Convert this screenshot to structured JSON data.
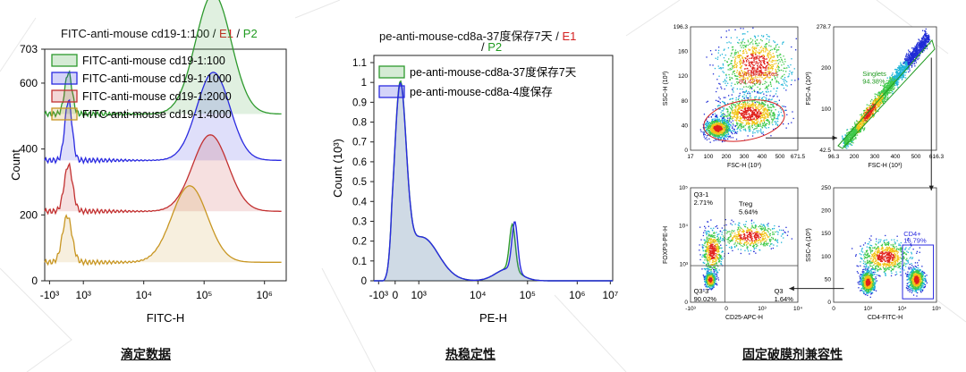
{
  "panels": [
    {
      "title_parts": [
        "FITC-anti-mouse cd19-1:100 / ",
        "E1",
        " / ",
        "P2"
      ],
      "caption": "滴定数据",
      "chart_data": {
        "type": "area",
        "ylabel": "Count",
        "xlabel": "FITC-H",
        "y_ticks": [
          "0",
          "200",
          "400",
          "600",
          "703"
        ],
        "x_ticks": [
          "-10³",
          "10³",
          "10⁴",
          "10⁵",
          "10⁶"
        ],
        "legend_position": "top-left",
        "series": [
          {
            "name": "FITC-anti-mouse cd19-1:100",
            "color": "#2e9a2e",
            "offset": 0.72,
            "peaks": [
              [
                0.4,
                0.18,
                0.06
              ],
              [
                2.85,
                0.52,
                0.3
              ]
            ]
          },
          {
            "name": "FITC-anti-mouse cd19-1:1000",
            "color": "#2a2ae0",
            "offset": 0.52,
            "peaks": [
              [
                0.4,
                0.26,
                0.06
              ],
              [
                2.85,
                0.38,
                0.28
              ]
            ]
          },
          {
            "name": "FITC-anti-mouse cd19-1:2000",
            "color": "#c23030",
            "offset": 0.3,
            "peaks": [
              [
                0.4,
                0.2,
                0.07
              ],
              [
                2.8,
                0.33,
                0.3
              ]
            ]
          },
          {
            "name": "FITC-anti-mouse cd19-1:4000",
            "color": "#c89622",
            "offset": 0.08,
            "peaks": [
              [
                0.38,
                0.2,
                0.08
              ],
              [
                2.45,
                0.33,
                0.3
              ]
            ]
          }
        ]
      }
    },
    {
      "title_parts": [
        "pe-anti-mouse-cd8a-37度保存7天 / ",
        "E1",
        " / ",
        "P2"
      ],
      "caption": "热稳定性",
      "chart_data": {
        "type": "area",
        "ylabel": "Count  (10³)",
        "xlabel": "PE-H",
        "y_ticks": [
          "0",
          "0.1",
          "0.2",
          "0.3",
          "0.4",
          "0.5",
          "0.6",
          "0.7",
          "0.8",
          "0.9",
          "1",
          "1.1"
        ],
        "x_ticks": [
          "-10³",
          "0",
          "10³",
          "10⁴",
          "10⁵",
          "10⁶",
          "10⁷"
        ],
        "legend_position": "top-left",
        "series": [
          {
            "name": "pe-anti-mouse-cd8a-37度保存7天",
            "color": "#2e9a2e",
            "peak1": 0.91,
            "peak2": 0.23
          },
          {
            "name": "pe-anti-mouse-cd8a-4度保存",
            "color": "#2a2ae0",
            "peak1": 0.9,
            "peak2": 0.25
          }
        ]
      }
    },
    {
      "caption": "固定破膜剂兼容性",
      "chart_data": {
        "type": "scatter",
        "plots": [
          {
            "xlabel": "FSC-H (10³)",
            "ylabel": "SSC-H (10³)",
            "x_ticks": [
              "17",
              "100",
              "200",
              "300",
              "400",
              "500",
              "671.5"
            ],
            "y_ticks": [
              "0",
              "40",
              "80",
              "120",
              "160",
              "196.3"
            ],
            "gate_name": "Lymphocytes",
            "gate_value": "80.42%"
          },
          {
            "xlabel": "FSC-H (10³)",
            "ylabel": "FSC-A (10³)",
            "x_ticks": [
              "96.3",
              "200",
              "300",
              "400",
              "500",
              "616.3"
            ],
            "y_ticks": [
              "42.5",
              "100",
              "200",
              "278.7"
            ],
            "gate_name": "Singlets",
            "gate_value": "94.38%"
          },
          {
            "xlabel": "CD25-APC-H",
            "ylabel": "FOXP3-PE-H",
            "x_ticks": [
              "-10³",
              "0",
              "10³",
              "10⁴"
            ],
            "y_ticks": [
              "0",
              "10³",
              "10⁴",
              "10⁵"
            ],
            "quadrants": [
              {
                "name": "Q3-1",
                "value": "2.71%"
              },
              {
                "name": "Treg",
                "value": "5.64%"
              },
              {
                "name": "Q3-3",
                "value": "90.02%"
              },
              {
                "name": "Q3",
                "value": "1.64%"
              }
            ]
          },
          {
            "xlabel": "CD4-FITC-H",
            "ylabel": "SSC-A (10³)",
            "x_ticks": [
              "0",
              "10³",
              "10⁴",
              "10⁵"
            ],
            "y_ticks": [
              "0",
              "50",
              "100",
              "150",
              "200",
              "250"
            ],
            "gate_name": "CD4+",
            "gate_value": "16.79%"
          }
        ]
      }
    }
  ]
}
